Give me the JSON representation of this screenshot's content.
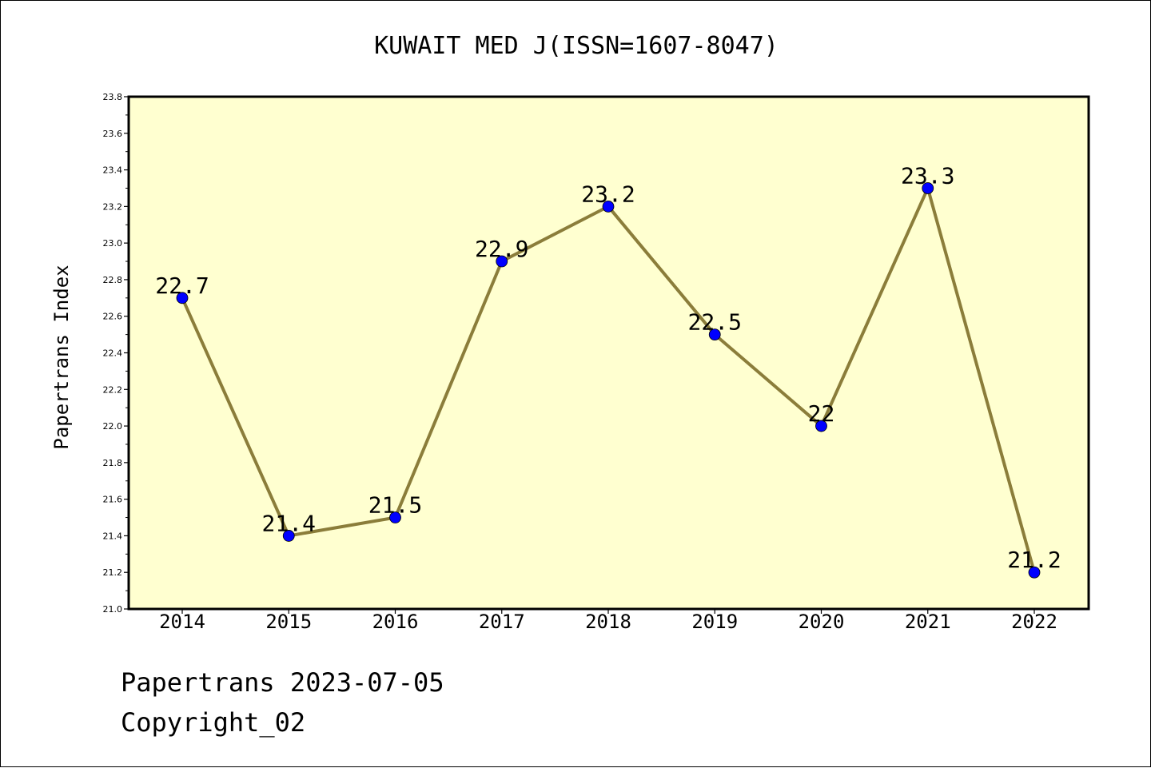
{
  "chart_data": {
    "type": "line",
    "title": "KUWAIT MED J(ISSN=1607-8047)",
    "xlabel": "",
    "ylabel": "Papertrans Index",
    "x": [
      "2014",
      "2015",
      "2016",
      "2017",
      "2018",
      "2019",
      "2020",
      "2021",
      "2022"
    ],
    "series": [
      {
        "values": [
          22.7,
          21.4,
          21.5,
          22.9,
          23.2,
          22.5,
          22.0,
          23.3,
          21.2
        ],
        "data_labels": [
          "22.7",
          "21.4",
          "21.5",
          "22.9",
          "23.2",
          "22.5",
          "22",
          "23.3",
          "21.2"
        ]
      }
    ],
    "ylim": [
      21.0,
      23.8
    ],
    "yticks": [
      "21.0",
      "21.2",
      "21.4",
      "21.6",
      "21.8",
      "22.0",
      "22.2",
      "22.4",
      "22.6",
      "22.8",
      "23.0",
      "23.2",
      "23.4",
      "23.6",
      "23.8"
    ],
    "grid": false,
    "legend": "none",
    "colors": {
      "plot_background": "#ffffd0",
      "line": "#8b7d3a",
      "marker": "#0000ff",
      "frame": "#000000"
    }
  },
  "footer": {
    "line1": "Papertrans 2023-07-05",
    "line2": "Copyright_02"
  }
}
